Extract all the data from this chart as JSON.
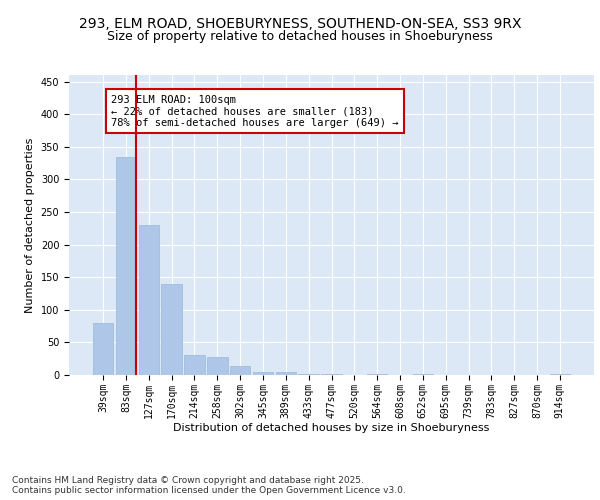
{
  "title1": "293, ELM ROAD, SHOEBURYNESS, SOUTHEND-ON-SEA, SS3 9RX",
  "title2": "Size of property relative to detached houses in Shoeburyness",
  "xlabel": "Distribution of detached houses by size in Shoeburyness",
  "ylabel": "Number of detached properties",
  "categories": [
    "39sqm",
    "83sqm",
    "127sqm",
    "170sqm",
    "214sqm",
    "258sqm",
    "302sqm",
    "345sqm",
    "389sqm",
    "433sqm",
    "477sqm",
    "520sqm",
    "564sqm",
    "608sqm",
    "652sqm",
    "695sqm",
    "739sqm",
    "783sqm",
    "827sqm",
    "870sqm",
    "914sqm"
  ],
  "values": [
    80,
    335,
    230,
    140,
    30,
    28,
    14,
    5,
    4,
    2,
    2,
    0,
    1,
    0,
    1,
    0,
    0,
    0,
    0,
    0,
    1
  ],
  "bar_color": "#aec6e8",
  "bar_edge_color": "#9ab8d8",
  "bg_color": "#dce8f5",
  "grid_color": "#ffffff",
  "annotation_text": "293 ELM ROAD: 100sqm\n← 22% of detached houses are smaller (183)\n78% of semi-detached houses are larger (649) →",
  "annotation_box_color": "#ffffff",
  "annotation_box_edge": "#cc0000",
  "vline_color": "#cc0000",
  "ylim": [
    0,
    460
  ],
  "yticks": [
    0,
    50,
    100,
    150,
    200,
    250,
    300,
    350,
    400,
    450
  ],
  "footer": "Contains HM Land Registry data © Crown copyright and database right 2025.\nContains public sector information licensed under the Open Government Licence v3.0.",
  "title_fontsize": 10,
  "subtitle_fontsize": 9,
  "axis_label_fontsize": 8,
  "tick_fontsize": 7,
  "annotation_fontsize": 7.5,
  "footer_fontsize": 6.5
}
